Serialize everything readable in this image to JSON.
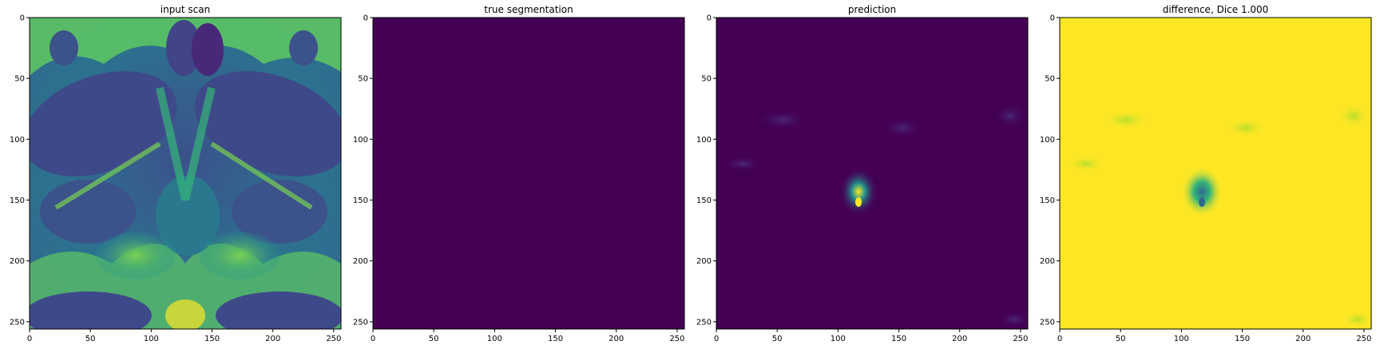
{
  "figure": {
    "panels": [
      {
        "id": "input-scan",
        "title": "input scan",
        "x_ticks": [
          "0",
          "50",
          "100",
          "150",
          "200",
          "250"
        ],
        "y_ticks": [
          "0",
          "50",
          "100",
          "150",
          "200",
          "250"
        ]
      },
      {
        "id": "true-segmentation",
        "title": "true segmentation",
        "x_ticks": [
          "0",
          "50",
          "100",
          "150",
          "200",
          "250"
        ],
        "y_ticks": [
          "0",
          "50",
          "100",
          "150",
          "200",
          "250"
        ]
      },
      {
        "id": "prediction",
        "title": "prediction",
        "x_ticks": [
          "0",
          "50",
          "100",
          "150",
          "200",
          "250"
        ],
        "y_ticks": [
          "0",
          "50",
          "100",
          "150",
          "200",
          "250"
        ]
      },
      {
        "id": "difference",
        "title": "difference, Dice 1.000",
        "x_ticks": [
          "0",
          "50",
          "100",
          "150",
          "200",
          "250"
        ],
        "y_ticks": [
          "0",
          "50",
          "100",
          "150",
          "200",
          "250"
        ]
      }
    ],
    "colors": {
      "viridis_dark": "#440154",
      "viridis_yellow": "#fde725",
      "viridis_teal": "#21918c",
      "viridis_green": "#5ec962",
      "viridis_blue": "#3b528b"
    }
  }
}
